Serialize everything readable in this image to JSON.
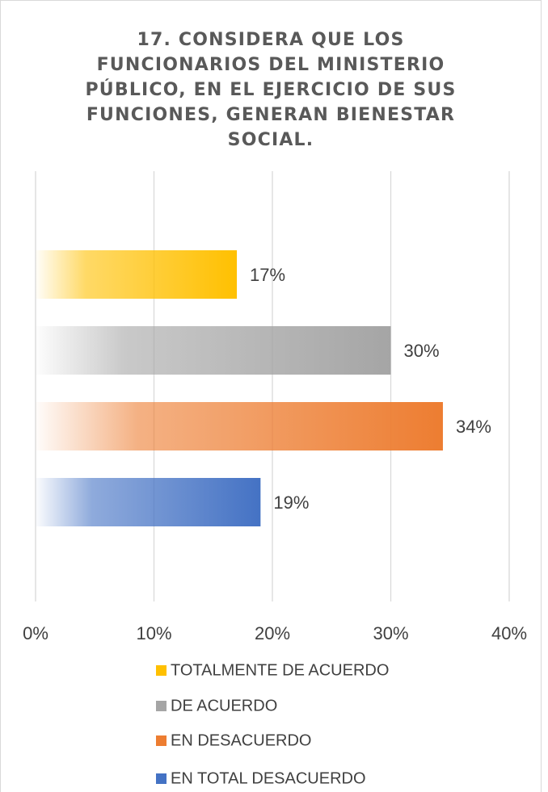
{
  "chart_data": {
    "type": "bar",
    "orientation": "horizontal",
    "title": "17.   CONSIDERA QUE LOS FUNCIONARIOS DEL MINISTERIO PÚBLICO, EN EL EJERCICIO DE SUS FUNCIONES, GENERAN BIENESTAR SOCIAL.",
    "series": [
      {
        "name": "TOTALMENTE DE ACUERDO",
        "color": "#ffc000",
        "values": [
          17
        ],
        "value_labels": [
          "17%"
        ]
      },
      {
        "name": "DE ACUERDO",
        "color": "#a5a5a5",
        "values": [
          30
        ],
        "value_labels": [
          "30%"
        ]
      },
      {
        "name": "EN DESACUERDO",
        "color": "#ed7d31",
        "values": [
          34.4
        ],
        "value_labels": [
          "34%"
        ]
      },
      {
        "name": "EN TOTAL DESACUERDO",
        "color": "#4472c4",
        "values": [
          19
        ],
        "value_labels": [
          "19%"
        ]
      }
    ],
    "xlim": [
      0,
      40
    ],
    "xticks": [
      {
        "value": 0,
        "label": "0%"
      },
      {
        "value": 10,
        "label": "10%"
      },
      {
        "value": 20,
        "label": "20%"
      },
      {
        "value": 30,
        "label": "30%"
      },
      {
        "value": 40,
        "label": "40%"
      }
    ],
    "grid": true,
    "legend": "bottom"
  }
}
